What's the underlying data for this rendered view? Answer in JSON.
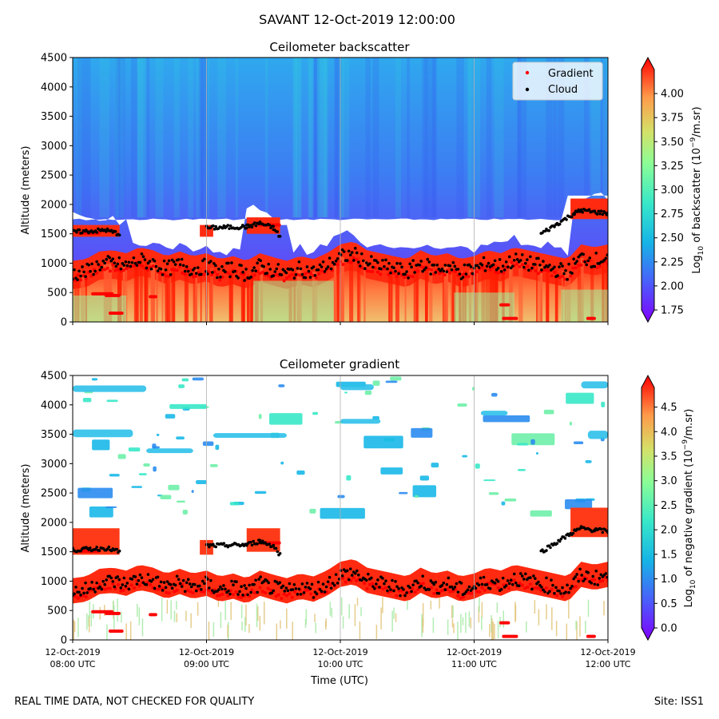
{
  "figure_title": "SAVANT 12-Oct-2019 12:00:00",
  "footer_left": "REAL TIME DATA, NOT CHECKED FOR QUALITY",
  "footer_right": "Site: ISS1",
  "time_label": "Time (UTC)",
  "colors": {
    "gradient_marker": "#ff0000",
    "cloud_marker": "#000000",
    "gridline": "#b0b0b0"
  },
  "chart_data": [
    {
      "type": "heatmap",
      "title": "Ceilometer backscatter",
      "ylabel": "Altitude (meters)",
      "xlabel": "",
      "ylim": [
        0,
        4500
      ],
      "yticks": [
        "0",
        "500",
        "1000",
        "1500",
        "2000",
        "2500",
        "3000",
        "3500",
        "4000",
        "4500"
      ],
      "x_range_hours": [
        8,
        12
      ],
      "xticks_hours": [
        8,
        9,
        10,
        11,
        12
      ],
      "colorbar": {
        "label": "Log10 of backscatter (10^-9/m.sr)",
        "label_main": "Log",
        "label_sub": "10",
        "label_rest": " of backscatter (10",
        "label_sup": "−9",
        "label_end": "/m.sr)",
        "range": [
          1.75,
          4.25
        ],
        "ticks": [
          "1.75",
          "2.00",
          "2.25",
          "2.50",
          "2.75",
          "3.00",
          "3.25",
          "3.50",
          "3.75",
          "4.00"
        ],
        "colormap": "rainbow"
      },
      "legend": {
        "location": "top-right",
        "entries": [
          {
            "label": "Gradient",
            "color": "#ff0000"
          },
          {
            "label": "Cloud",
            "color": "#000000"
          }
        ]
      }
    },
    {
      "type": "heatmap",
      "title": "Ceilometer gradient",
      "ylabel": "Altitude (meters)",
      "xlabel": "Time (UTC)",
      "ylim": [
        0,
        4500
      ],
      "yticks": [
        "0",
        "500",
        "1000",
        "1500",
        "2000",
        "2500",
        "3000",
        "3500",
        "4000",
        "4500"
      ],
      "x_range_hours": [
        8,
        12
      ],
      "xticks_hours": [
        8,
        9,
        10,
        11,
        12
      ],
      "xtick_labels": [
        [
          "12-Oct-2019",
          "08:00 UTC"
        ],
        [
          "12-Oct-2019",
          "09:00 UTC"
        ],
        [
          "12-Oct-2019",
          "10:00 UTC"
        ],
        [
          "12-Oct-2019",
          "11:00 UTC"
        ],
        [
          "12-Oct-2019",
          "12:00 UTC"
        ]
      ],
      "colorbar": {
        "label": "Log10 of negative gradient (10^-9/m.sr)",
        "label_main": "Log",
        "label_sub": "10",
        "label_rest": " of negative gradient (10",
        "label_sup": "−9",
        "label_end": "/m.sr)",
        "range": [
          0,
          4.9
        ],
        "ticks": [
          "0.0",
          "0.5",
          "1.0",
          "1.5",
          "2.0",
          "2.5",
          "3.0",
          "3.5",
          "4.0",
          "4.5"
        ],
        "colormap": "rainbow"
      }
    }
  ],
  "cloud_base_series": {
    "description": "Approximate cloud-layer altitudes (m) vs time (hours UTC)",
    "lower_layer": [
      [
        8.0,
        820
      ],
      [
        8.1,
        850
      ],
      [
        8.2,
        980
      ],
      [
        8.3,
        1000
      ],
      [
        8.4,
        950
      ],
      [
        8.5,
        1050
      ],
      [
        8.6,
        1000
      ],
      [
        8.7,
        900
      ],
      [
        8.8,
        980
      ],
      [
        8.9,
        900
      ],
      [
        9.0,
        950
      ],
      [
        9.1,
        850
      ],
      [
        9.2,
        900
      ],
      [
        9.3,
        820
      ],
      [
        9.4,
        950
      ],
      [
        9.5,
        880
      ],
      [
        9.6,
        820
      ],
      [
        9.7,
        900
      ],
      [
        9.8,
        850
      ],
      [
        9.9,
        950
      ],
      [
        10.0,
        1100
      ],
      [
        10.1,
        1150
      ],
      [
        10.2,
        1000
      ],
      [
        10.3,
        950
      ],
      [
        10.4,
        900
      ],
      [
        10.5,
        850
      ],
      [
        10.6,
        1000
      ],
      [
        10.7,
        900
      ],
      [
        10.8,
        950
      ],
      [
        10.9,
        850
      ],
      [
        11.0,
        900
      ],
      [
        11.1,
        1000
      ],
      [
        11.2,
        950
      ],
      [
        11.3,
        1050
      ],
      [
        11.4,
        1000
      ],
      [
        11.5,
        950
      ],
      [
        11.6,
        900
      ],
      [
        11.7,
        850
      ],
      [
        11.8,
        1100
      ],
      [
        11.9,
        1050
      ],
      [
        12.0,
        1100
      ]
    ],
    "upper_layer": [
      [
        8.0,
        1530
      ],
      [
        8.25,
        1560
      ],
      [
        8.35,
        1500
      ],
      [
        9.0,
        1600
      ],
      [
        9.3,
        1620
      ],
      [
        9.4,
        1680
      ],
      [
        9.5,
        1600
      ],
      [
        9.55,
        1450
      ],
      [
        11.5,
        1500
      ],
      [
        11.75,
        1850
      ],
      [
        11.8,
        1900
      ],
      [
        11.9,
        1870
      ],
      [
        12.0,
        1850
      ]
    ]
  }
}
